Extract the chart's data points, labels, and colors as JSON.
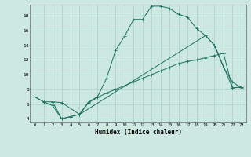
{
  "xlabel": "Humidex (Indice chaleur)",
  "xlim": [
    -0.5,
    23.5
  ],
  "ylim": [
    3.5,
    19.5
  ],
  "xticks": [
    0,
    1,
    2,
    3,
    4,
    5,
    6,
    7,
    8,
    9,
    10,
    11,
    12,
    13,
    14,
    15,
    16,
    17,
    18,
    19,
    20,
    21,
    22,
    23
  ],
  "yticks": [
    4,
    6,
    8,
    10,
    12,
    14,
    16,
    18
  ],
  "bg_color": "#cce8e0",
  "line_color": "#1a7060",
  "grid_color": "#aed4cc",
  "line1_x": [
    0,
    1,
    2,
    3,
    4,
    5,
    6,
    7,
    8,
    9,
    10,
    11,
    12,
    13,
    14,
    15,
    16,
    17,
    18,
    19,
    20,
    21,
    22,
    23
  ],
  "line1_y": [
    7.0,
    6.3,
    5.8,
    4.0,
    4.3,
    4.6,
    6.3,
    7.0,
    9.5,
    13.3,
    15.2,
    17.5,
    17.5,
    19.3,
    19.3,
    19.0,
    18.2,
    17.8,
    16.3,
    15.3,
    14.0,
    11.0,
    9.0,
    8.2
  ],
  "line2_x": [
    2,
    3,
    4,
    5,
    6,
    7,
    8,
    9,
    10,
    11,
    12,
    13,
    14,
    15,
    16,
    17,
    18,
    19,
    20,
    21,
    22,
    23
  ],
  "line2_y": [
    6.3,
    4.0,
    4.3,
    4.6,
    6.2,
    6.9,
    7.5,
    8.0,
    8.5,
    9.0,
    9.5,
    10.0,
    10.5,
    11.0,
    11.5,
    11.8,
    12.0,
    12.3,
    12.6,
    12.9,
    8.2,
    8.3
  ],
  "line3_x": [
    0,
    1,
    2,
    3,
    5,
    19,
    20,
    22,
    23
  ],
  "line3_y": [
    7.0,
    6.3,
    6.3,
    6.2,
    4.6,
    15.3,
    14.0,
    8.2,
    8.3
  ]
}
